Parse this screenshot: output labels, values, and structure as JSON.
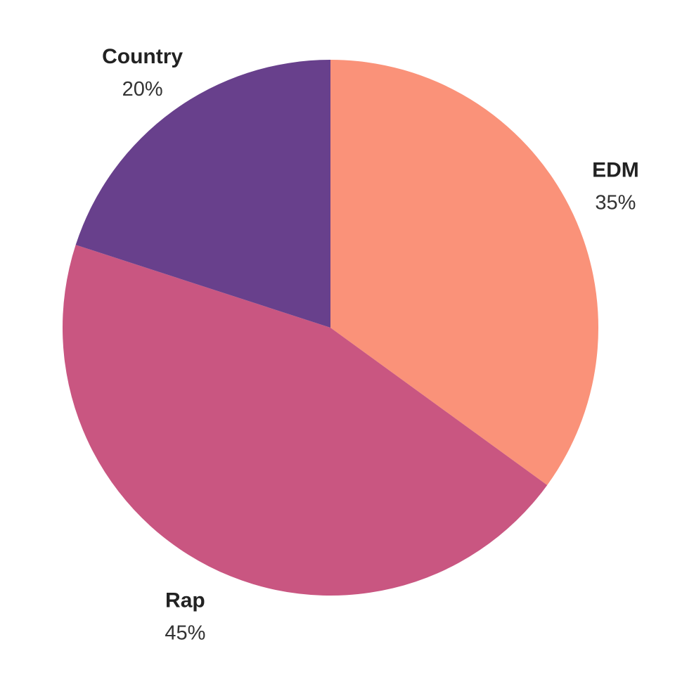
{
  "chart_data": {
    "type": "pie",
    "slices": [
      {
        "label": "EDM",
        "value": 35,
        "value_label": "35%",
        "color": "#FA9279"
      },
      {
        "label": "Rap",
        "value": 45,
        "value_label": "45%",
        "color": "#C95681"
      },
      {
        "label": "Country",
        "value": 20,
        "value_label": "20%",
        "color": "#68408C"
      }
    ],
    "start": "12 o'clock",
    "direction": "clockwise",
    "legend": "none",
    "labels": "outside"
  }
}
